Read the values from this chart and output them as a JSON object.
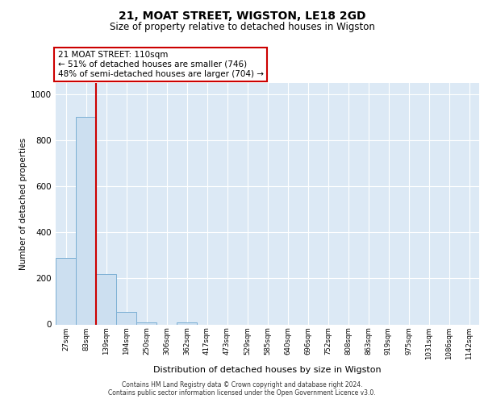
{
  "title": "21, MOAT STREET, WIGSTON, LE18 2GD",
  "subtitle": "Size of property relative to detached houses in Wigston",
  "xlabel": "Distribution of detached houses by size in Wigston",
  "ylabel": "Number of detached properties",
  "bar_color": "#ccdff0",
  "bar_edge_color": "#7bafd4",
  "background_color": "#dce9f5",
  "grid_color": "#ffffff",
  "categories": [
    "27sqm",
    "83sqm",
    "139sqm",
    "194sqm",
    "250sqm",
    "306sqm",
    "362sqm",
    "417sqm",
    "473sqm",
    "529sqm",
    "585sqm",
    "640sqm",
    "696sqm",
    "752sqm",
    "808sqm",
    "863sqm",
    "919sqm",
    "975sqm",
    "1031sqm",
    "1086sqm",
    "1142sqm"
  ],
  "values": [
    290,
    900,
    220,
    55,
    10,
    0,
    10,
    0,
    0,
    0,
    0,
    0,
    0,
    0,
    0,
    0,
    0,
    0,
    0,
    0,
    0
  ],
  "ylim": [
    0,
    1050
  ],
  "yticks": [
    0,
    200,
    400,
    600,
    800,
    1000
  ],
  "property_line_x": 1.5,
  "annotation_text": "21 MOAT STREET: 110sqm\n← 51% of detached houses are smaller (746)\n48% of semi-detached houses are larger (704) →",
  "annotation_box_color": "#ffffff",
  "annotation_box_edge": "#cc0000",
  "property_line_color": "#cc0000",
  "footer_line1": "Contains HM Land Registry data © Crown copyright and database right 2024.",
  "footer_line2": "Contains public sector information licensed under the Open Government Licence v3.0."
}
